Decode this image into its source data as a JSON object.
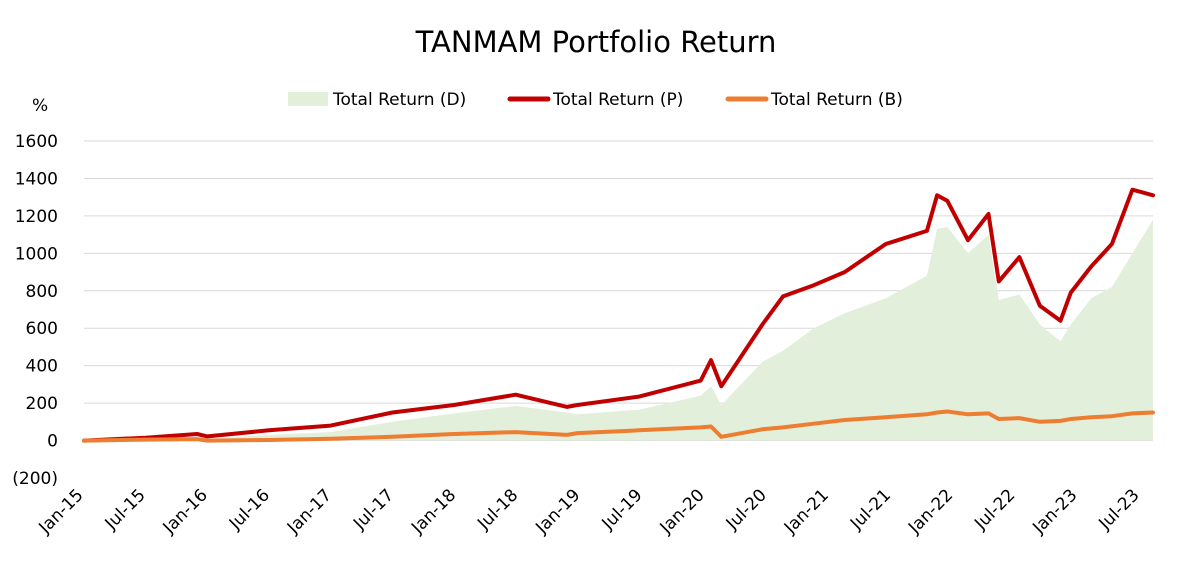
{
  "chart_data": {
    "type": "line",
    "title": "TANMAM Portfolio Return",
    "ylabel": "%",
    "ylim": [
      -200,
      1600
    ],
    "yticks": [
      {
        "value": 1600,
        "label": "1600"
      },
      {
        "value": 1400,
        "label": "1400"
      },
      {
        "value": 1200,
        "label": "1200"
      },
      {
        "value": 1000,
        "label": "1000"
      },
      {
        "value": 800,
        "label": "800"
      },
      {
        "value": 600,
        "label": "600"
      },
      {
        "value": 400,
        "label": "400"
      },
      {
        "value": 200,
        "label": "200"
      },
      {
        "value": 0,
        "label": "0"
      },
      {
        "value": -200,
        "label": "(200)",
        "color": "#ff0000"
      }
    ],
    "xticks": [
      "Jan-15",
      "Jul-15",
      "Jan-16",
      "Jul-16",
      "Jan-17",
      "Jul-17",
      "Jan-18",
      "Jul-18",
      "Jan-19",
      "Jul-19",
      "Jan-20",
      "Jul-20",
      "Jan-21",
      "Jul-21",
      "Jan-22",
      "Jul-22",
      "Jan-23",
      "Jul-23"
    ],
    "x_range": [
      "2015-01",
      "2023-09"
    ],
    "grid": true,
    "legend_position": "top-center",
    "series": [
      {
        "name": "Total Return (D)",
        "kind": "area",
        "color": "#e2efda",
        "points": [
          [
            "2015-01",
            0
          ],
          [
            "2015-07",
            8
          ],
          [
            "2015-12",
            15
          ],
          [
            "2016-01",
            10
          ],
          [
            "2016-07",
            30
          ],
          [
            "2017-01",
            45
          ],
          [
            "2017-07",
            100
          ],
          [
            "2018-01",
            145
          ],
          [
            "2018-07",
            185
          ],
          [
            "2018-12",
            150
          ],
          [
            "2019-01",
            140
          ],
          [
            "2019-07",
            165
          ],
          [
            "2020-01",
            240
          ],
          [
            "2020-02",
            290
          ],
          [
            "2020-03",
            190
          ],
          [
            "2020-07",
            420
          ],
          [
            "2020-09",
            480
          ],
          [
            "2020-12",
            600
          ],
          [
            "2021-03",
            680
          ],
          [
            "2021-07",
            760
          ],
          [
            "2021-11",
            880
          ],
          [
            "2021-12",
            1130
          ],
          [
            "2022-01",
            1140
          ],
          [
            "2022-03",
            1000
          ],
          [
            "2022-05",
            1100
          ],
          [
            "2022-06",
            750
          ],
          [
            "2022-08",
            780
          ],
          [
            "2022-10",
            620
          ],
          [
            "2022-12",
            530
          ],
          [
            "2023-01",
            620
          ],
          [
            "2023-03",
            760
          ],
          [
            "2023-05",
            820
          ],
          [
            "2023-07",
            1000
          ],
          [
            "2023-09",
            1180
          ]
        ]
      },
      {
        "name": "Total Return (P)",
        "kind": "line",
        "color": "#c00000",
        "points": [
          [
            "2015-01",
            0
          ],
          [
            "2015-07",
            15
          ],
          [
            "2015-12",
            35
          ],
          [
            "2016-01",
            22
          ],
          [
            "2016-07",
            55
          ],
          [
            "2017-01",
            80
          ],
          [
            "2017-07",
            150
          ],
          [
            "2018-01",
            190
          ],
          [
            "2018-07",
            245
          ],
          [
            "2018-12",
            180
          ],
          [
            "2019-01",
            190
          ],
          [
            "2019-07",
            235
          ],
          [
            "2020-01",
            320
          ],
          [
            "2020-02",
            430
          ],
          [
            "2020-03",
            290
          ],
          [
            "2020-07",
            620
          ],
          [
            "2020-09",
            770
          ],
          [
            "2020-12",
            830
          ],
          [
            "2021-03",
            900
          ],
          [
            "2021-07",
            1050
          ],
          [
            "2021-11",
            1120
          ],
          [
            "2021-12",
            1310
          ],
          [
            "2022-01",
            1280
          ],
          [
            "2022-03",
            1070
          ],
          [
            "2022-05",
            1210
          ],
          [
            "2022-06",
            850
          ],
          [
            "2022-08",
            980
          ],
          [
            "2022-10",
            720
          ],
          [
            "2022-12",
            640
          ],
          [
            "2023-01",
            790
          ],
          [
            "2023-03",
            930
          ],
          [
            "2023-05",
            1050
          ],
          [
            "2023-07",
            1340
          ],
          [
            "2023-09",
            1310
          ]
        ]
      },
      {
        "name": "Total Return (B)",
        "kind": "line",
        "color": "#ed7d31",
        "points": [
          [
            "2015-01",
            0
          ],
          [
            "2015-07",
            5
          ],
          [
            "2015-12",
            8
          ],
          [
            "2016-01",
            0
          ],
          [
            "2016-07",
            3
          ],
          [
            "2017-01",
            10
          ],
          [
            "2017-07",
            20
          ],
          [
            "2018-01",
            35
          ],
          [
            "2018-07",
            45
          ],
          [
            "2018-12",
            30
          ],
          [
            "2019-01",
            40
          ],
          [
            "2019-07",
            55
          ],
          [
            "2020-01",
            70
          ],
          [
            "2020-02",
            75
          ],
          [
            "2020-03",
            20
          ],
          [
            "2020-07",
            60
          ],
          [
            "2020-09",
            70
          ],
          [
            "2020-12",
            90
          ],
          [
            "2021-03",
            110
          ],
          [
            "2021-07",
            125
          ],
          [
            "2021-11",
            140
          ],
          [
            "2021-12",
            150
          ],
          [
            "2022-01",
            155
          ],
          [
            "2022-03",
            140
          ],
          [
            "2022-05",
            145
          ],
          [
            "2022-06",
            115
          ],
          [
            "2022-08",
            120
          ],
          [
            "2022-10",
            100
          ],
          [
            "2022-12",
            105
          ],
          [
            "2023-01",
            115
          ],
          [
            "2023-03",
            125
          ],
          [
            "2023-05",
            130
          ],
          [
            "2023-07",
            145
          ],
          [
            "2023-09",
            150
          ]
        ]
      }
    ]
  }
}
